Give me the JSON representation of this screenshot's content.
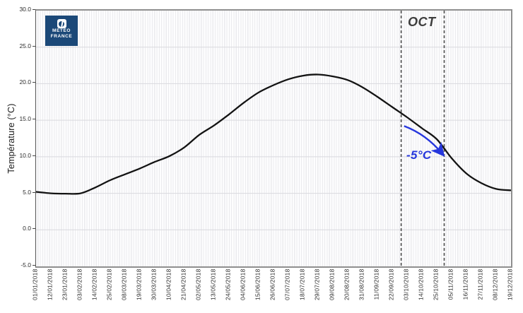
{
  "logo": {
    "name": "meteo-france-logo",
    "line1": "METEO",
    "line2": "FRANCE",
    "background_color": "#1b4878"
  },
  "chart_data": {
    "type": "line",
    "title": "",
    "xlabel": "",
    "ylabel": "Température (°C)",
    "ylim": [
      -5,
      30
    ],
    "y_ticks": [
      "30.0",
      "25.0",
      "20.0",
      "15.0",
      "10.0",
      "5.0",
      "0.0",
      "-5.0"
    ],
    "grid": {
      "horizontal_major": true,
      "vertical_minor_stripes": true
    },
    "legend": "none",
    "categories": [
      "01/01/2018",
      "12/01/2018",
      "23/01/2018",
      "03/02/2018",
      "14/02/2018",
      "25/02/2018",
      "08/03/2018",
      "19/03/2018",
      "30/03/2018",
      "10/04/2018",
      "21/04/2018",
      "02/05/2018",
      "13/05/2018",
      "24/05/2018",
      "04/06/2018",
      "15/06/2018",
      "26/06/2018",
      "07/07/2018",
      "18/07/2018",
      "29/07/2018",
      "09/08/2018",
      "20/08/2018",
      "31/08/2018",
      "11/09/2018",
      "22/09/2018",
      "03/10/2018",
      "14/10/2018",
      "25/10/2018",
      "05/11/2018",
      "16/11/2018",
      "27/11/2018",
      "08/12/2018",
      "19/12/2018"
    ],
    "series": [
      {
        "name": "Température",
        "color": "#131313",
        "values": [
          5.2,
          5.0,
          4.95,
          5.0,
          5.8,
          6.8,
          7.6,
          8.4,
          9.3,
          10.1,
          11.3,
          13.0,
          14.3,
          15.8,
          17.4,
          18.8,
          19.8,
          20.6,
          21.1,
          21.25,
          21.0,
          20.5,
          19.5,
          18.2,
          16.8,
          15.4,
          13.9,
          12.4,
          9.8,
          7.7,
          6.4,
          5.6,
          5.4
        ]
      }
    ],
    "annotations": {
      "oct_band": {
        "label": "OCT",
        "label_color": "#3d3d3d",
        "start_index": 24.6,
        "end_index": 27.5,
        "line_color": "#4d4d4d",
        "line_style": "dashed"
      },
      "drop_arrow": {
        "label": "-5°C",
        "color": "#2637dd",
        "from": {
          "index": 24.8,
          "temp": 14.2
        },
        "to": {
          "index": 27.35,
          "temp": 10.45
        }
      }
    }
  }
}
